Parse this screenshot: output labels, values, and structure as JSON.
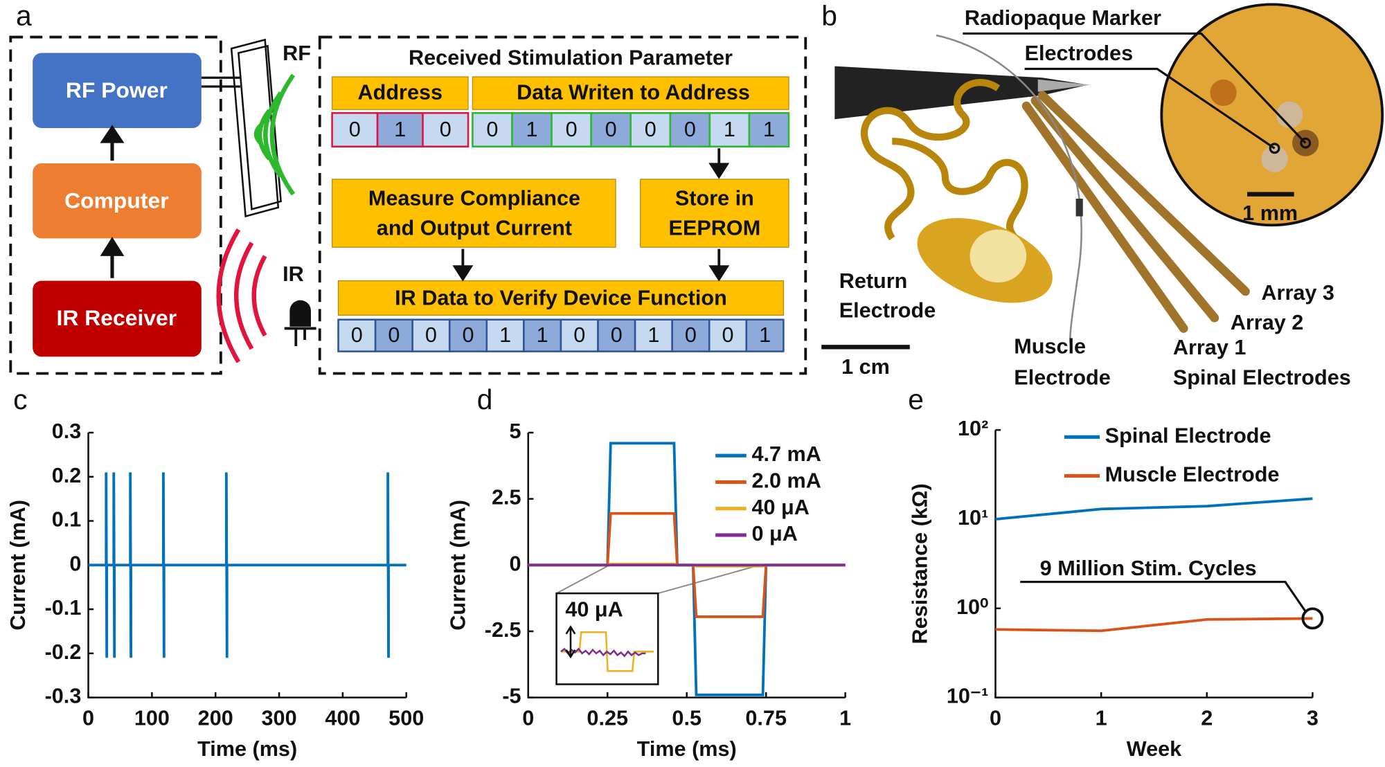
{
  "panel_labels": [
    "a",
    "b",
    "c",
    "d",
    "e"
  ],
  "diagram_a": {
    "boxes": [
      "RF Power",
      "Computer",
      "IR Receiver"
    ],
    "rf": "RF",
    "ir": "IR",
    "header": "Received Stimulation Parameter",
    "address_label": "Address",
    "data_label": "Data Writen to Address",
    "address_bits": [
      0,
      1,
      0
    ],
    "data_bits": [
      0,
      1,
      0,
      0,
      0,
      0,
      1,
      1
    ],
    "measure": [
      "Measure Compliance",
      "and Output Current"
    ],
    "store": [
      "Store in",
      "EEPROM"
    ],
    "ir_header": "IR Data to Verify Device Function",
    "ir_bits": [
      0,
      0,
      0,
      0,
      1,
      1,
      0,
      0,
      1,
      0,
      0,
      1
    ]
  },
  "photo_b": {
    "marker": "Radiopaque Marker",
    "electrodes": "Electrodes",
    "scale_small": "1 mm",
    "return": [
      "Return",
      "Electrode"
    ],
    "muscle": [
      "Muscle",
      "Electrode"
    ],
    "arrays": [
      "Array 3",
      "Array 2",
      "Array 1"
    ],
    "spinal": "Spinal Electrodes",
    "scale_large": "1 cm"
  },
  "chart_data": [
    {
      "type": "line",
      "x_label": "Time (ms)",
      "y_label": "Current (mA)",
      "x": [
        0,
        28,
        28,
        29,
        29,
        40,
        40,
        41,
        41,
        66,
        66,
        67,
        67,
        118,
        118,
        119,
        119,
        217,
        217,
        218,
        218,
        471,
        471,
        472,
        472,
        500
      ],
      "series": [
        {
          "color": "#0072bd",
          "values": [
            0,
            0,
            0.21,
            -0.21,
            0,
            0,
            0.21,
            -0.21,
            0,
            0,
            0.21,
            -0.21,
            0,
            0,
            0.21,
            -0.21,
            0,
            0,
            0.21,
            -0.21,
            0,
            0,
            0.21,
            -0.21,
            0,
            0
          ]
        }
      ],
      "xlim": [
        0,
        500
      ],
      "xticks": [
        0,
        100,
        200,
        300,
        400,
        500
      ],
      "ylim": [
        -0.3,
        0.3
      ],
      "yticks": [
        -0.3,
        -0.2,
        -0.1,
        0,
        0.1,
        0.2,
        0.3
      ]
    },
    {
      "type": "line",
      "x_label": "Time (ms)",
      "y_label": "Current (mA)",
      "inset_label": "40 μA",
      "x": [
        0,
        0.25,
        0.26,
        0.46,
        0.47,
        0.52,
        0.53,
        0.74,
        0.75,
        1
      ],
      "series": [
        {
          "name": "4.7 mA",
          "color": "#0072bd",
          "values": [
            0,
            0,
            4.6,
            4.6,
            0,
            0,
            -4.9,
            -4.9,
            0,
            0
          ]
        },
        {
          "name": "2.0 mA",
          "color": "#d95319",
          "values": [
            0,
            0,
            1.95,
            1.95,
            0,
            0,
            -1.95,
            -1.95,
            0,
            0
          ]
        },
        {
          "name": "40 μA",
          "color": "#edb120",
          "values": [
            0,
            0,
            0.04,
            0.04,
            0,
            0,
            -0.04,
            -0.04,
            0,
            0
          ]
        },
        {
          "name": "0 μA",
          "color": "#7e2f8e",
          "values": [
            0,
            0,
            0,
            0,
            0,
            0,
            0,
            0,
            0,
            0
          ]
        }
      ],
      "xlim": [
        0,
        1
      ],
      "xticks": [
        0,
        0.25,
        0.5,
        0.75,
        1
      ],
      "ylim": [
        -5,
        5
      ],
      "yticks": [
        -5,
        -2.5,
        0,
        2.5,
        5
      ]
    },
    {
      "type": "line",
      "x_label": "Week",
      "y_label": "Resistance (kΩ)",
      "annotation": "9 Million Stim. Cycles",
      "x": [
        0,
        1,
        2,
        3
      ],
      "series": [
        {
          "name": "Spinal Electrode",
          "color": "#0072bd",
          "values": [
            10,
            13,
            14,
            17
          ]
        },
        {
          "name": "Muscle Electrode",
          "color": "#d95319",
          "values": [
            0.58,
            0.56,
            0.75,
            0.77
          ]
        }
      ],
      "xlim": [
        0,
        3
      ],
      "xticks": [
        0,
        1,
        2,
        3
      ],
      "log_y": true,
      "ylim": [
        0.1,
        100
      ],
      "yticks": [
        {
          "value": 0.1,
          "label": "10⁻¹"
        },
        {
          "value": 1,
          "label": "10⁰"
        },
        {
          "value": 10,
          "label": "10¹"
        },
        {
          "value": 100,
          "label": "10²"
        }
      ]
    }
  ]
}
